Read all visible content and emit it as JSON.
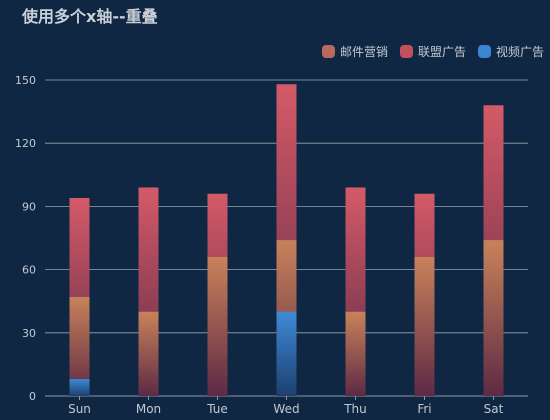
{
  "chart_data": {
    "type": "bar",
    "title": "使用多个x轴--重叠",
    "categories": [
      "Sun",
      "Mon",
      "Tue",
      "Wed",
      "Thu",
      "Fri",
      "Sat"
    ],
    "ylim": [
      0,
      150
    ],
    "yticks": [
      0,
      30,
      60,
      90,
      120,
      150
    ],
    "grid": true,
    "legend_position": "top-right",
    "overlap": true,
    "series": [
      {
        "name": "邮件营销",
        "values": [
          47,
          40,
          66,
          74,
          40,
          66,
          74
        ],
        "color_top": "#c8825a",
        "color_bottom": "#5e2a45",
        "swatch": "#b86a5c"
      },
      {
        "name": "联盟广告",
        "values": [
          94,
          99,
          96,
          148,
          99,
          96,
          138
        ],
        "color_top": "#d45a67",
        "color_bottom": "#5c2a48",
        "swatch": "#c2505f"
      },
      {
        "name": "视频广告",
        "values": [
          8,
          0,
          0,
          40,
          0,
          0,
          0
        ],
        "color_top": "#3f8ad8",
        "color_bottom": "#1d3f6e",
        "swatch": "#3a86d4"
      }
    ]
  }
}
